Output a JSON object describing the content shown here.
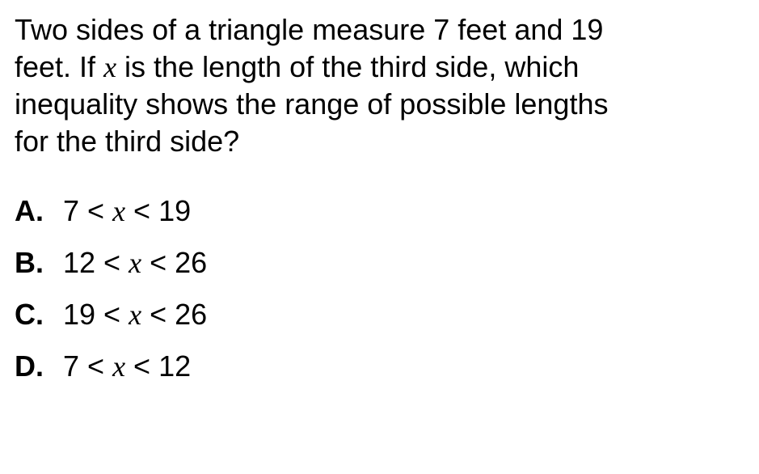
{
  "question": {
    "line1": "Two sides of a triangle measure 7 feet and 19",
    "line2_a": "feet. If ",
    "line2_var": "x",
    "line2_b": " is the length of the third side, which",
    "line3": "inequality shows the range of possible lengths",
    "line4": "for the third side?"
  },
  "options": {
    "a": {
      "label": "A.",
      "left": "7 < ",
      "var": "x",
      "right": " < 19"
    },
    "b": {
      "label": "B.",
      "left": "12 < ",
      "var": "x",
      "right": " < 26"
    },
    "c": {
      "label": "C.",
      "left": "19 < ",
      "var": "x",
      "right": " < 26"
    },
    "d": {
      "label": "D.",
      "left": "7 < ",
      "var": "x",
      "right": " < 12"
    }
  },
  "style": {
    "background": "#ffffff",
    "text_color": "#000000",
    "question_fontsize": 36,
    "option_fontsize": 36,
    "option_label_bold": true
  }
}
